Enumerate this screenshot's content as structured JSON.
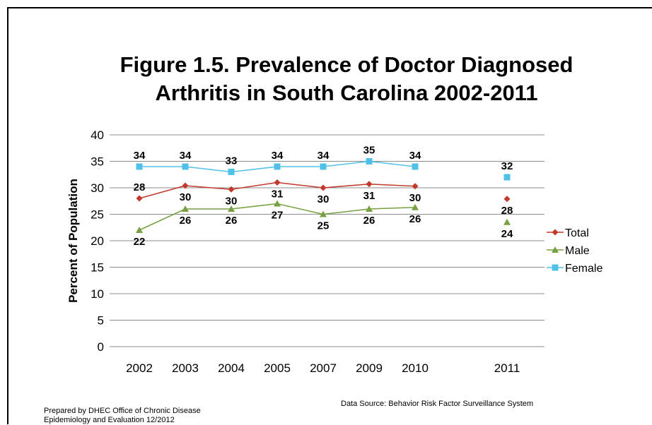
{
  "title": {
    "line1": "Figure 1.5.  Prevalence of Doctor Diagnosed",
    "line2": "Arthritis in South Carolina 2002-2011"
  },
  "footer": {
    "prepared_line1": "Prepared by DHEC Office of Chronic Disease",
    "prepared_line2": "Epidemiology and Evaluation 12/2012",
    "source": "Data Source:  Behavior  Risk Factor Surveillance  System"
  },
  "chart_data": {
    "type": "line",
    "title": "Figure 1.5.  Prevalence of Doctor Diagnosed Arthritis in South Carolina 2002-2011",
    "xlabel": "",
    "ylabel": "Percent of Population",
    "ylim": [
      0,
      40
    ],
    "yticks": [
      "0",
      "5",
      "10",
      "15",
      "20",
      "25",
      "30",
      "35",
      "40"
    ],
    "categories": [
      "2002",
      "2003",
      "2004",
      "2005",
      "2007",
      "2009",
      "2010",
      "2011"
    ],
    "grid": true,
    "legend_position": "right",
    "series": [
      {
        "name": "Total",
        "color": "#C0392B",
        "marker": "diamond",
        "values": [
          28,
          30.4,
          29.7,
          31,
          30,
          30.7,
          30.3,
          27.9
        ],
        "labels": [
          "28",
          "30",
          "30",
          "31",
          "30",
          "31",
          "30",
          "28"
        ],
        "connected_count": 7
      },
      {
        "name": "Male",
        "color": "#77A043",
        "marker": "triangle",
        "values": [
          22,
          26,
          26,
          27,
          25,
          26,
          26.3,
          23.5
        ],
        "labels": [
          "22",
          "26",
          "26",
          "27",
          "25",
          "26",
          "26",
          "24"
        ],
        "connected_count": 7
      },
      {
        "name": "Female",
        "color": "#4FC1E9",
        "marker": "square",
        "values": [
          34,
          34,
          33,
          34,
          34,
          35,
          34,
          32
        ],
        "labels": [
          "34",
          "34",
          "33",
          "34",
          "34",
          "35",
          "34",
          "32"
        ],
        "connected_count": 7
      }
    ]
  }
}
